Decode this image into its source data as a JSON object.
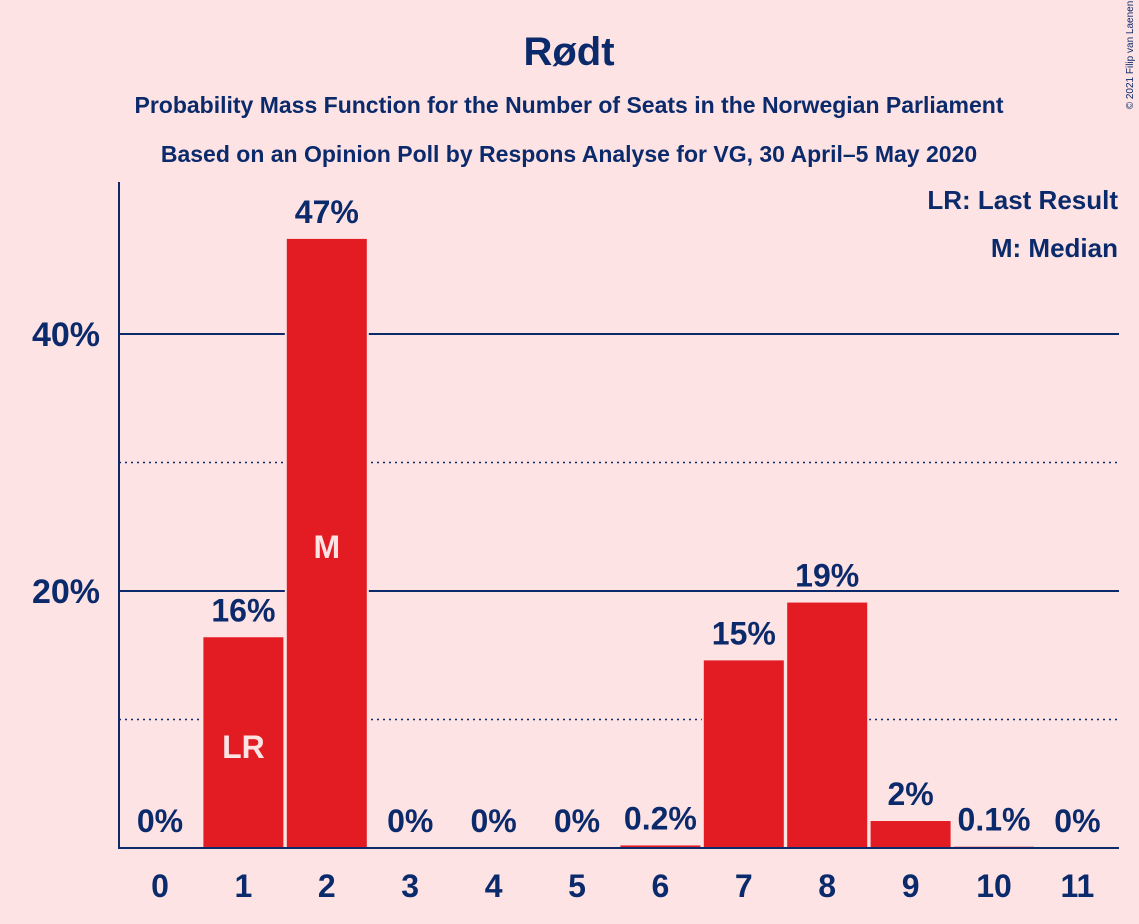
{
  "chart_data": {
    "type": "bar",
    "title": "Rødt",
    "subtitle": "Probability Mass Function for the Number of Seats in the Norwegian Parliament",
    "subtitle2": "Based on an Opinion Poll by Respons Analyse for VG, 30 April–5 May 2020",
    "categories": [
      "0",
      "1",
      "2",
      "3",
      "4",
      "5",
      "6",
      "7",
      "8",
      "9",
      "10",
      "11"
    ],
    "values": [
      0,
      16.4,
      47.4,
      0,
      0,
      0,
      0.2,
      14.6,
      19.1,
      2.1,
      0.1,
      0
    ],
    "data_labels": [
      "0%",
      "16%",
      "47%",
      "0%",
      "0%",
      "0%",
      "0.2%",
      "15%",
      "19%",
      "2%",
      "0.1%",
      "0%"
    ],
    "ylim": [
      0,
      50
    ],
    "yticks": [
      20,
      40
    ],
    "ytick_labels": [
      "20%",
      "40%"
    ],
    "minor_gridlines": [
      10,
      30
    ],
    "bar_color": "#E31C23",
    "text_color": "#0B2A6B",
    "background_color": "#FDE3E3",
    "last_result_index": 1,
    "median_index": 2,
    "last_result_marker": "LR",
    "median_marker": "M",
    "legend": {
      "placement": "top-right",
      "entries": [
        "LR: Last Result",
        "M: Median"
      ]
    },
    "copyright": "© 2021 Filip van Laenen"
  }
}
